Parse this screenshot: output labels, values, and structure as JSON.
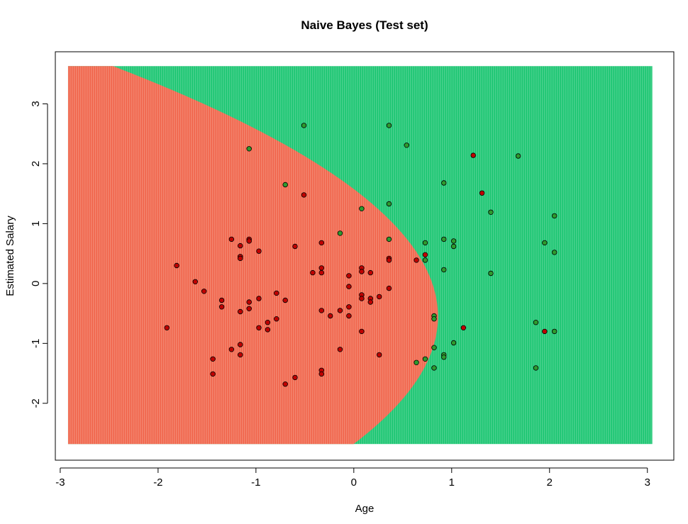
{
  "chart_data": {
    "type": "scatter",
    "title": "Naive Bayes (Test set)",
    "xlabel": "Age",
    "ylabel": "Estimated Salary",
    "xlim": [
      -3.05,
      3.27
    ],
    "ylim": [
      -2.95,
      3.87
    ],
    "grid_extent": {
      "x": [
        -2.92,
        3.05
      ],
      "y": [
        -2.68,
        3.63
      ]
    },
    "xticks": [
      -3,
      -2,
      -1,
      0,
      1,
      2,
      3
    ],
    "yticks": [
      -2,
      -1,
      0,
      1,
      2,
      3
    ],
    "region_colors": {
      "class_0": "#F0644A",
      "class_1": "#19C570"
    },
    "point_colors": {
      "class_0": "#C00000",
      "class_1": "#2E9A2E"
    },
    "boundary": {
      "type": "parabola",
      "x_vertex": 0.86,
      "y_center": -0.55,
      "a": 0.19
    },
    "series": [
      {
        "class": 0,
        "points": [
          [
            -1.91,
            -0.74
          ],
          [
            -1.81,
            0.3
          ],
          [
            -1.62,
            0.03
          ],
          [
            -1.53,
            -0.13
          ],
          [
            -1.44,
            -1.26
          ],
          [
            -1.44,
            -1.51
          ],
          [
            -1.35,
            -0.28
          ],
          [
            -1.35,
            -0.39
          ],
          [
            -1.25,
            0.74
          ],
          [
            -1.25,
            -1.1
          ],
          [
            -1.16,
            0.63
          ],
          [
            -1.16,
            0.45
          ],
          [
            -1.16,
            0.42
          ],
          [
            -1.16,
            -0.47
          ],
          [
            -1.16,
            -1.02
          ],
          [
            -1.16,
            -1.19
          ],
          [
            -1.07,
            0.74
          ],
          [
            -1.07,
            0.71
          ],
          [
            -1.07,
            -0.31
          ],
          [
            -1.07,
            -0.42
          ],
          [
            -0.97,
            0.54
          ],
          [
            -0.97,
            -0.25
          ],
          [
            -0.97,
            -0.74
          ],
          [
            -0.88,
            -0.65
          ],
          [
            -0.88,
            -0.77
          ],
          [
            -0.79,
            -0.16
          ],
          [
            -0.79,
            -0.59
          ],
          [
            -0.7,
            -0.28
          ],
          [
            -0.7,
            -1.68
          ],
          [
            -0.6,
            0.62
          ],
          [
            -0.6,
            -1.57
          ],
          [
            -0.51,
            1.48
          ],
          [
            -0.42,
            0.18
          ],
          [
            -0.33,
            0.68
          ],
          [
            -0.33,
            0.26
          ],
          [
            -0.33,
            0.18
          ],
          [
            -0.33,
            -0.45
          ],
          [
            -0.33,
            -1.45
          ],
          [
            -0.33,
            -1.51
          ],
          [
            -0.24,
            -0.54
          ],
          [
            -0.14,
            -0.45
          ],
          [
            -0.14,
            -1.1
          ],
          [
            -0.05,
            0.13
          ],
          [
            -0.05,
            -0.05
          ],
          [
            -0.05,
            -0.39
          ],
          [
            -0.05,
            -0.54
          ],
          [
            0.08,
            0.26
          ],
          [
            0.08,
            0.2
          ],
          [
            0.08,
            -0.19
          ],
          [
            0.08,
            -0.25
          ],
          [
            0.08,
            -0.8
          ],
          [
            0.17,
            0.18
          ],
          [
            0.17,
            -0.25
          ],
          [
            0.17,
            -0.31
          ],
          [
            0.26,
            -0.22
          ],
          [
            0.26,
            -1.19
          ],
          [
            0.36,
            0.42
          ],
          [
            0.36,
            0.39
          ],
          [
            0.36,
            -0.08
          ],
          [
            0.64,
            0.39
          ],
          [
            0.73,
            0.48
          ],
          [
            1.12,
            -0.74
          ],
          [
            1.22,
            2.14
          ],
          [
            1.31,
            1.51
          ],
          [
            1.95,
            -0.8
          ]
        ]
      },
      {
        "class": 1,
        "points": [
          [
            -1.07,
            2.25
          ],
          [
            -0.7,
            1.65
          ],
          [
            -0.51,
            2.64
          ],
          [
            -0.14,
            0.84
          ],
          [
            0.08,
            1.25
          ],
          [
            0.36,
            2.64
          ],
          [
            0.36,
            1.33
          ],
          [
            0.36,
            0.74
          ],
          [
            0.54,
            2.31
          ],
          [
            0.64,
            -1.32
          ],
          [
            0.73,
            0.68
          ],
          [
            0.73,
            0.39
          ],
          [
            0.73,
            -1.26
          ],
          [
            0.82,
            -0.54
          ],
          [
            0.82,
            -0.59
          ],
          [
            0.82,
            -1.07
          ],
          [
            0.82,
            -1.41
          ],
          [
            0.92,
            1.68
          ],
          [
            0.92,
            0.74
          ],
          [
            0.92,
            0.23
          ],
          [
            0.92,
            -1.19
          ],
          [
            0.92,
            -1.23
          ],
          [
            1.02,
            0.71
          ],
          [
            1.02,
            0.62
          ],
          [
            1.02,
            -0.99
          ],
          [
            1.4,
            1.19
          ],
          [
            1.4,
            0.17
          ],
          [
            1.68,
            2.13
          ],
          [
            1.86,
            -0.65
          ],
          [
            1.86,
            -1.41
          ],
          [
            1.95,
            0.68
          ],
          [
            2.05,
            1.13
          ],
          [
            2.05,
            0.52
          ],
          [
            2.05,
            -0.8
          ]
        ]
      }
    ]
  }
}
